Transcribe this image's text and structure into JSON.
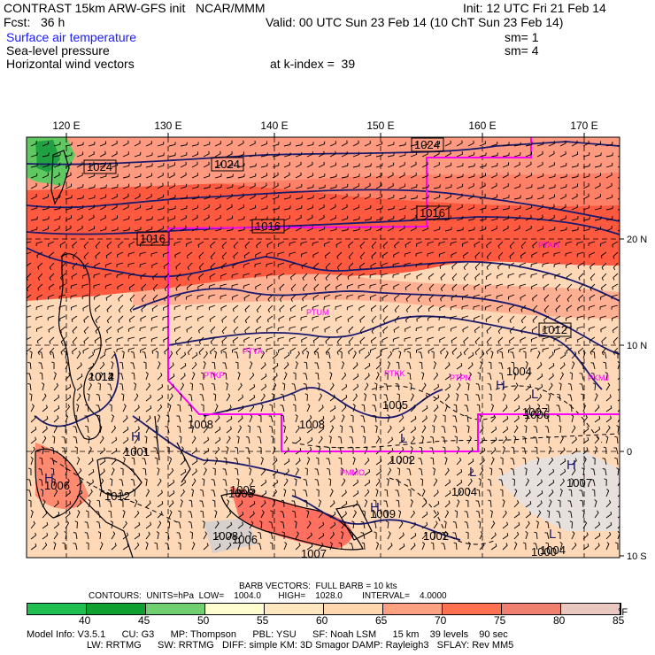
{
  "header": {
    "title_left": "CONTRAST 15km ARW-GFS init   NCAR/MMM",
    "title_right": "Init: 12 UTC Fri 21 Feb 14",
    "fcst": "Fcst:   36 h",
    "valid": "Valid: 00 UTC Sun 23 Feb 14 (10 ChT Sun 23 Feb 14)",
    "field1": "Surface air temperature",
    "field1_sm": "sm= 1",
    "field2": "Sea-level pressure",
    "field2_sm": "sm= 4",
    "field3": "Horizontal wind vectors",
    "k_index": "at k-index =  39"
  },
  "map": {
    "lon_labels": [
      "120 E",
      "130 E",
      "140 E",
      "150 E",
      "160 E",
      "170 E"
    ],
    "lat_labels": [
      "20 N",
      "10 N",
      "0",
      "10 S"
    ],
    "isobar_labels": [
      "1024",
      "1024",
      "1024",
      "1016",
      "1016",
      "1016",
      "1012",
      "1012",
      "1008",
      "1008",
      "1004",
      "1005",
      "1002",
      "1006",
      "1005",
      "1007",
      "1007",
      "1004",
      "1009",
      "1002",
      "1004",
      "1006",
      "1006",
      "1007",
      "1008",
      "1014",
      "1012",
      "1001",
      "1000",
      "1008"
    ],
    "pressure_centers": [
      {
        "text": "H"
      },
      {
        "text": "H"
      },
      {
        "text": "L"
      },
      {
        "text": "L"
      },
      {
        "text": "H"
      },
      {
        "text": "H"
      },
      {
        "text": "L"
      },
      {
        "text": "H"
      },
      {
        "text": "L"
      }
    ],
    "stations": [
      "PTAH",
      "PTUM",
      "PTYA",
      "PTKP",
      "PTKK",
      "PTPN",
      "PKMJ",
      "PMMO"
    ],
    "land_color": "#000000",
    "boundary_color": "#ff00ff"
  },
  "footer": {
    "barb_line": "BARB VECTORS:  FULL BARB = 10 kts",
    "contours_line": "CONTOURS:  UNITS=hPa  LOW=    1004.0       HIGH=    1028.0        INTERVAL=    4.0000",
    "scale_values": [
      "40",
      "45",
      "50",
      "55",
      "60",
      "65",
      "70",
      "75",
      "80",
      "85"
    ],
    "scale_unit": "°F",
    "scale_colors": [
      "#20c050",
      "#10a030",
      "#70d070",
      "#ffffd0",
      "#ffe8c0",
      "#ffd8b0",
      "#ffa080",
      "#ff7050",
      "#f08070",
      "#e8c8c0"
    ],
    "info1": "Model Info: V3.5.1      CU: G3      MP: Thompson      PBL: YSU      SF: Noah LSM      15 km    39 levels    90 sec",
    "info2": "LW: RRTMG      SW: RRTMG   DIFF: simple KM: 3D Smagor DAMP: Rayleigh3   SFLAY: Rev MM5"
  }
}
